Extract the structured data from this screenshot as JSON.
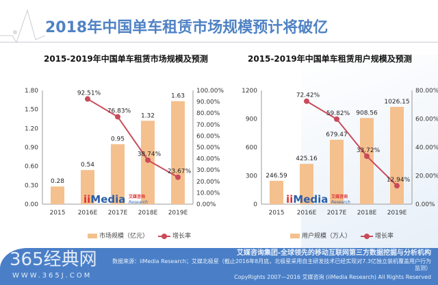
{
  "header": {
    "title": "2018年中国单车租赁市场规模预计将破亿"
  },
  "logo": {
    "text": "iiMedia",
    "cn": "艾媒咨询",
    "sub": "Research"
  },
  "footer": {
    "line1": "艾媒咨询集团-全球领先的移动互联网第三方数据挖掘与分析机构",
    "line2": "数据来源：iiMedia Research；艾媒北极星（截止2016年8月底，北极星采用自主研发技术已经实现对7.3亿独立装机覆盖用户行为监测）",
    "line3": "CopyRights 2007—2016 艾媒咨询 (iiMedia Research) All Rights Reserved",
    "watermark": "365经典网",
    "watermark_url": "WWW.365J.COM"
  },
  "chart_data": [
    {
      "type": "bar+line",
      "title": "2015-2019年中国单车租赁市场规模及预测",
      "categories": [
        "2015",
        "2016E",
        "2017E",
        "2018E",
        "2019E"
      ],
      "series": [
        {
          "name": "市场规模（亿元）",
          "type": "bar",
          "axis": "left",
          "values": [
            0.28,
            0.54,
            0.95,
            1.32,
            1.63
          ],
          "labels": [
            "0.28",
            "0.54",
            "0.95",
            "1.32",
            "1.63"
          ],
          "color": "#f4c08e"
        },
        {
          "name": "增长率",
          "type": "line",
          "axis": "right",
          "values": [
            null,
            92.51,
            76.83,
            38.74,
            23.67
          ],
          "labels": [
            "",
            "92.51%",
            "76.83%",
            "38.74%",
            "23.67%"
          ],
          "color": "#c94a5a"
        }
      ],
      "yleft": {
        "range": [
          0,
          1.8
        ],
        "ticks": [
          "0.00",
          "0.30",
          "0.60",
          "0.90",
          "1.20",
          "1.50",
          "1.80"
        ]
      },
      "yright": {
        "range": [
          0,
          100
        ],
        "ticks": [
          "0.00%",
          "10.00%",
          "20.00%",
          "30.00%",
          "40.00%",
          "50.00%",
          "60.00%",
          "70.00%",
          "80.00%",
          "90.00%",
          "100.00%"
        ]
      },
      "legend": "bottom",
      "grid": false
    },
    {
      "type": "bar+line",
      "title": "2015-2019年中国单车租赁用户规模及预测",
      "categories": [
        "2015",
        "2016E",
        "2017E",
        "2018E",
        "2019E"
      ],
      "series": [
        {
          "name": "用户规模（万人）",
          "type": "bar",
          "axis": "left",
          "values": [
            246.59,
            425.16,
            679.47,
            908.56,
            1026.15
          ],
          "labels": [
            "246.59",
            "425.16",
            "679.47",
            "908.56",
            "1026.15"
          ],
          "color": "#f4c08e"
        },
        {
          "name": "增长率",
          "type": "line",
          "axis": "right",
          "values": [
            null,
            72.42,
            59.82,
            33.72,
            12.94
          ],
          "labels": [
            "",
            "72.42%",
            "59.82%",
            "33.72%",
            "12.94%"
          ],
          "color": "#c94a5a"
        }
      ],
      "yleft": {
        "range": [
          0,
          1200
        ],
        "ticks": [
          "0",
          "300",
          "600",
          "900",
          "1200"
        ]
      },
      "yright": {
        "range": [
          0,
          80
        ],
        "ticks": [
          "0.00%",
          "20.00%",
          "40.00%",
          "60.00%",
          "80.00%"
        ]
      },
      "legend": "bottom",
      "grid": false
    }
  ]
}
